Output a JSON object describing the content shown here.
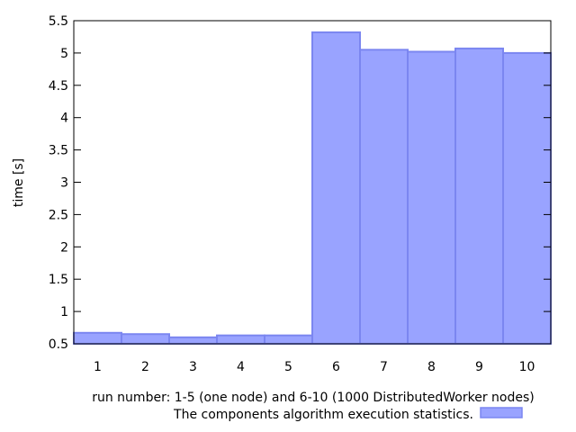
{
  "chart_data": {
    "type": "bar",
    "categories": [
      "1",
      "2",
      "3",
      "4",
      "5",
      "6",
      "7",
      "8",
      "9",
      "10"
    ],
    "series": [
      {
        "name": "The components algorithm execution statistics.",
        "values": [
          0.67,
          0.65,
          0.6,
          0.63,
          0.63,
          5.32,
          5.05,
          5.02,
          5.07,
          5.0
        ]
      }
    ],
    "xlabel": "run number: 1-5 (one node) and 6-10 (1000 DistributedWorker nodes)",
    "ylabel": "time [s]",
    "ylim": [
      0.5,
      5.5
    ],
    "yticks": [
      "0.5",
      "1",
      "1.5",
      "2",
      "2.5",
      "3",
      "3.5",
      "4",
      "4.5",
      "5",
      "5.5"
    ],
    "grid": false,
    "legend_position": "bottom-right",
    "bar_fill": "#99a3ff",
    "bar_stroke": "#7b86f0"
  }
}
